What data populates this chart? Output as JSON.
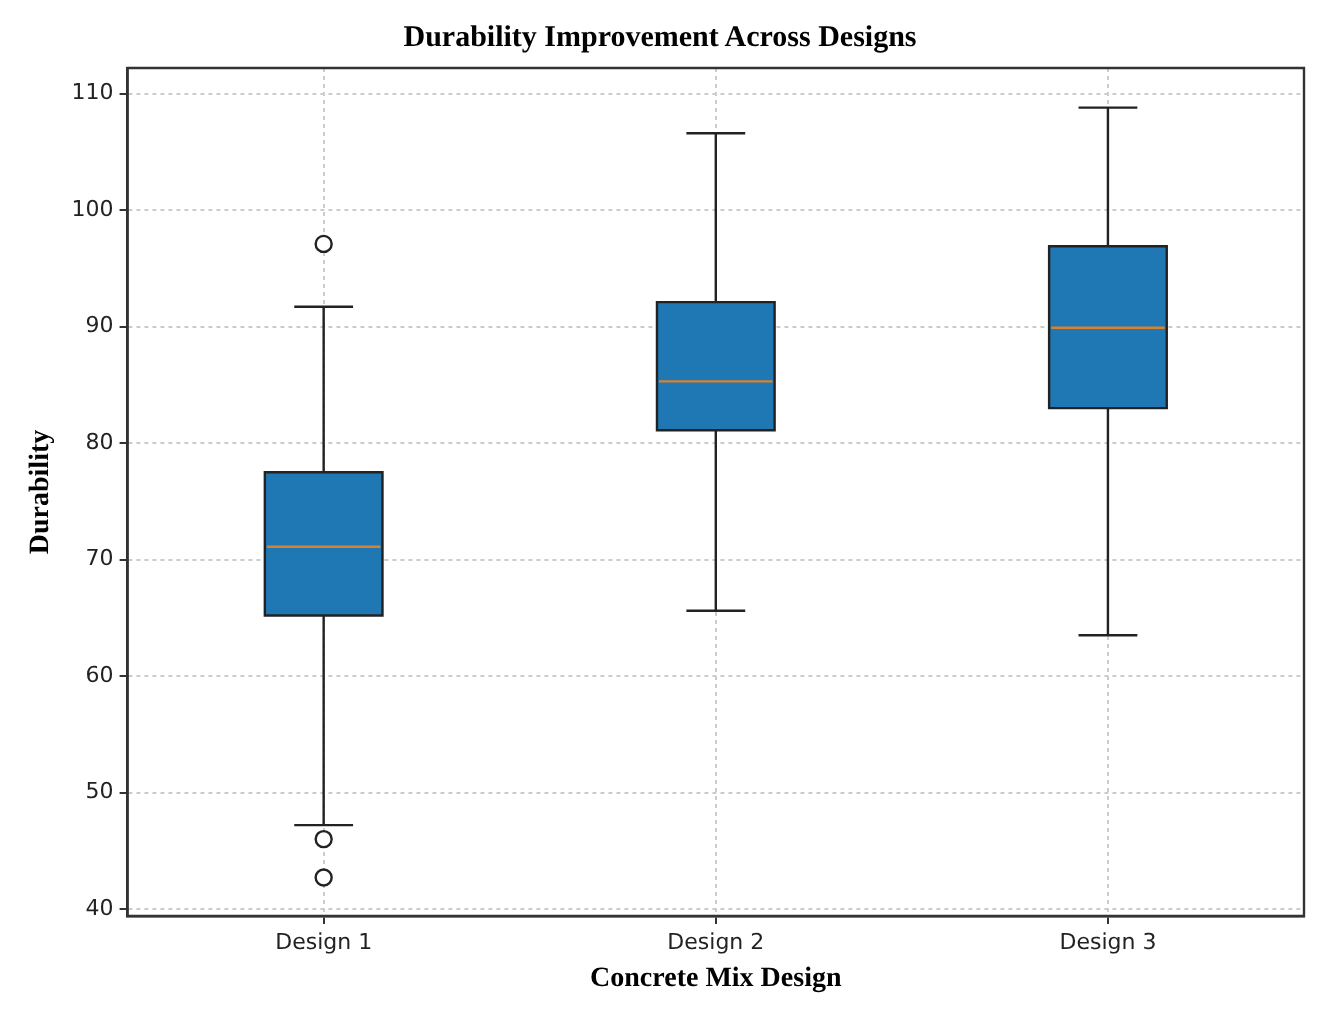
{
  "chart_data": {
    "type": "box",
    "title": "Durability Improvement Across Designs",
    "xlabel": "Concrete Mix Design",
    "ylabel": "Durability",
    "categories": [
      "Design 1",
      "Design 2",
      "Design 3"
    ],
    "boxes": [
      {
        "low": 47.2,
        "q1": 65.2,
        "median": 71.1,
        "q3": 77.5,
        "high": 91.7,
        "outliers": [
          97.1,
          46.0,
          42.7
        ]
      },
      {
        "low": 65.6,
        "q1": 81.1,
        "median": 85.3,
        "q3": 92.1,
        "high": 106.6
      },
      {
        "low": 63.5,
        "q1": 83.0,
        "median": 89.9,
        "q3": 96.9,
        "high": 108.8
      }
    ],
    "color": "#1f77b4",
    "ylim": [
      39.4,
      112.2
    ],
    "yticks": [
      40,
      50,
      60,
      70,
      80,
      90,
      100,
      110
    ],
    "grid": true
  }
}
